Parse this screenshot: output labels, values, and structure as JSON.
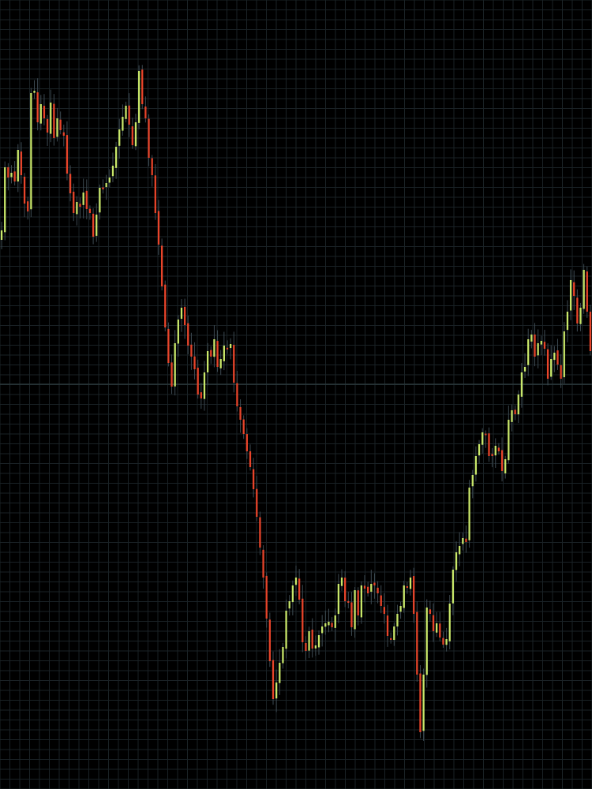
{
  "chart_data": {
    "type": "candlestick",
    "title": "",
    "xlabel": "",
    "ylabel": "",
    "ylim": [
      0,
      1000
    ],
    "grid": true,
    "legend": "none",
    "reference_line": 513,
    "colors": {
      "background": "#000000",
      "grid": "#1a2226",
      "reference": "#2f3d3f",
      "up": "#c9e86a",
      "down": "#e8442a",
      "wick": "#3d4a52"
    },
    "closes": [
      708,
      788,
      775,
      781,
      770,
      810,
      778,
      742,
      732,
      882,
      885,
      845,
      868,
      850,
      832,
      870,
      825,
      850,
      835,
      828,
      780,
      755,
      730,
      744,
      738,
      756,
      735,
      730,
      700,
      728,
      762,
      760,
      768,
      775,
      790,
      814,
      836,
      852,
      866,
      842,
      816,
      845,
      910,
      868,
      850,
      800,
      778,
      730,
      690,
      637,
      585,
      540,
      510,
      565,
      595,
      610,
      588,
      562,
      548,
      532,
      500,
      495,
      528,
      555,
      548,
      570,
      535,
      545,
      562,
      558,
      564,
      515,
      485,
      468,
      450,
      428,
      408,
      380,
      345,
      306,
      268,
      216,
      162,
      114,
      135,
      160,
      180,
      226,
      238,
      258,
      268,
      240,
      186,
      175,
      200,
      178,
      182,
      195,
      206,
      210,
      212,
      205,
      220,
      260,
      268,
      238,
      236,
      205,
      252,
      220,
      258,
      254,
      248,
      260,
      258,
      248,
      232,
      222,
      194,
      190,
      206,
      222,
      232,
      258,
      256,
      268,
      222,
      145,
      72,
      145,
      230,
      222,
      200,
      210,
      192,
      183,
      190,
      235,
      278,
      300,
      308,
      318,
      313,
      382,
      398,
      422,
      437,
      452,
      450,
      422,
      422,
      435,
      428,
      403,
      418,
      468,
      480,
      475,
      500,
      528,
      535,
      570,
      576,
      548,
      565,
      568,
      558,
      520,
      545,
      553,
      538,
      520,
      580,
      605,
      645,
      625,
      590,
      610,
      658,
      605,
      555
    ]
  }
}
